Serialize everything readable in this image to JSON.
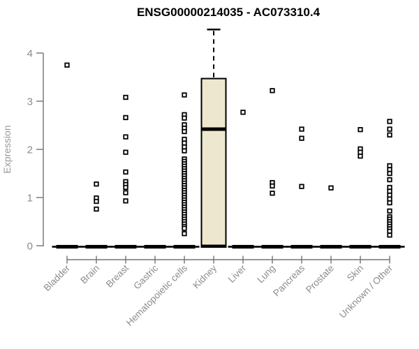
{
  "chart_data": {
    "type": "boxplot",
    "title": "ENSG00000214035 - AC073310.4",
    "ylabel": "Expression",
    "xlabel": "",
    "ylim": [
      0,
      4.6
    ],
    "yticks": [
      0,
      1,
      2,
      3,
      4
    ],
    "grid": false,
    "legend": "none",
    "marker": "open-square",
    "colors": {
      "box_fill": "#ece7ce",
      "box_stroke": "#000000",
      "median": "#000000",
      "axis": "#737373",
      "tick_label": "#8c8c8c",
      "axis_title": "#9a9a9a",
      "title": "#000000",
      "marker_stroke": "#000000",
      "marker_fill": "#ffffff"
    },
    "categories": [
      "Bladder",
      "Brain",
      "Breast",
      "Gastric",
      "Hematopoietic cells",
      "Kidney",
      "Liver",
      "Lung",
      "Pancreas",
      "Prostate",
      "Skin",
      "Unknown / Other"
    ],
    "series": [
      {
        "category": "Bladder",
        "median": 0,
        "outliers": [
          3.75
        ]
      },
      {
        "category": "Brain",
        "median": 0,
        "outliers": [
          1.28,
          0.99,
          0.92,
          0.76
        ]
      },
      {
        "category": "Breast",
        "median": 0,
        "outliers": [
          3.08,
          2.66,
          2.26,
          1.94,
          1.53,
          1.33,
          1.27,
          1.21,
          1.1,
          0.93
        ]
      },
      {
        "category": "Gastric",
        "median": 0,
        "outliers": []
      },
      {
        "category": "Hematopoietic cells",
        "median": 0,
        "outliers": [
          3.13,
          2.72,
          2.65,
          2.51,
          2.44,
          2.37,
          2.21,
          2.13,
          2.05,
          1.97,
          1.8,
          1.75,
          1.7,
          1.65,
          1.6,
          1.55,
          1.5,
          1.45,
          1.4,
          1.35,
          1.3,
          1.25,
          1.2,
          1.15,
          1.1,
          1.05,
          1.0,
          0.95,
          0.9,
          0.85,
          0.8,
          0.75,
          0.7,
          0.65,
          0.6,
          0.55,
          0.5,
          0.45,
          0.4,
          0.36,
          0.25
        ]
      },
      {
        "category": "Kidney",
        "box": {
          "q1": 0,
          "median": 2.42,
          "q3": 3.47,
          "whisker_high": 4.49
        },
        "outliers": []
      },
      {
        "category": "Liver",
        "median": 0,
        "outliers": [
          2.77
        ]
      },
      {
        "category": "Lung",
        "median": 0,
        "outliers": [
          3.22,
          1.31,
          1.24,
          1.09
        ]
      },
      {
        "category": "Pancreas",
        "median": 0,
        "outliers": [
          2.42,
          2.23,
          1.23
        ]
      },
      {
        "category": "Prostate",
        "median": 0,
        "outliers": [
          1.2
        ]
      },
      {
        "category": "Skin",
        "median": 0,
        "outliers": [
          2.41,
          2.01,
          1.94,
          1.86
        ]
      },
      {
        "category": "Unknown / Other",
        "median": 0,
        "outliers": [
          2.58,
          2.42,
          2.3,
          1.66,
          1.58,
          1.5,
          1.37,
          1.21,
          1.13,
          1.05,
          0.97,
          0.89,
          0.72,
          0.6,
          0.55,
          0.5,
          0.45,
          0.4,
          0.35,
          0.3,
          0.22
        ]
      }
    ]
  }
}
